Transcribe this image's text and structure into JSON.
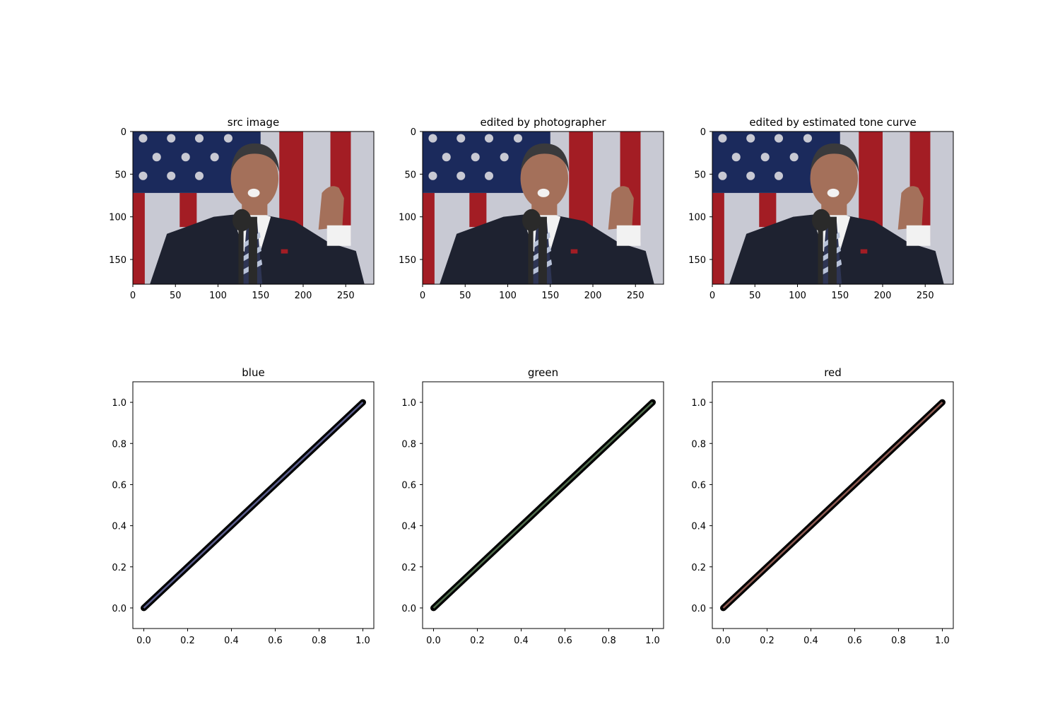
{
  "chart_data": [
    {
      "type": "image",
      "title": "src image",
      "xticks": [
        "0",
        "50",
        "100",
        "150",
        "200",
        "250"
      ],
      "yticks": [
        "0",
        "50",
        "100",
        "150"
      ],
      "xlim": [
        0,
        283
      ],
      "ylim": [
        0,
        179
      ],
      "content": "photo-man-speaking-flag"
    },
    {
      "type": "image",
      "title": "edited by photographer",
      "xticks": [
        "0",
        "50",
        "100",
        "150",
        "200",
        "250"
      ],
      "yticks": [
        "0",
        "50",
        "100",
        "150"
      ],
      "xlim": [
        0,
        283
      ],
      "ylim": [
        0,
        179
      ],
      "content": "photo-man-speaking-flag"
    },
    {
      "type": "image",
      "title": "edited by estimated tone curve",
      "xticks": [
        "0",
        "50",
        "100",
        "150",
        "200",
        "250"
      ],
      "yticks": [
        "0",
        "50",
        "100",
        "150"
      ],
      "xlim": [
        0,
        283
      ],
      "ylim": [
        0,
        179
      ],
      "content": "photo-man-speaking-flag"
    },
    {
      "type": "scatter",
      "title": "blue",
      "xticks": [
        "0.0",
        "0.2",
        "0.4",
        "0.6",
        "0.8",
        "1.0"
      ],
      "yticks": [
        "0.0",
        "0.2",
        "0.4",
        "0.6",
        "0.8",
        "1.0"
      ],
      "xlim": [
        -0.05,
        1.05
      ],
      "ylim": [
        -0.1,
        1.1
      ],
      "x": [
        0,
        1
      ],
      "y": [
        0,
        1
      ],
      "points": "dense",
      "marker_color": "#000000",
      "line_color": "#5b5e8c"
    },
    {
      "type": "scatter",
      "title": "green",
      "xticks": [
        "0.0",
        "0.2",
        "0.4",
        "0.6",
        "0.8",
        "1.0"
      ],
      "yticks": [
        "0.0",
        "0.2",
        "0.4",
        "0.6",
        "0.8",
        "1.0"
      ],
      "xlim": [
        -0.05,
        1.05
      ],
      "ylim": [
        -0.1,
        1.1
      ],
      "x": [
        0,
        1
      ],
      "y": [
        0,
        1
      ],
      "points": "dense",
      "marker_color": "#000000",
      "line_color": "#4f6b4c"
    },
    {
      "type": "scatter",
      "title": "red",
      "xticks": [
        "0.0",
        "0.2",
        "0.4",
        "0.6",
        "0.8",
        "1.0"
      ],
      "yticks": [
        "0.0",
        "0.2",
        "0.4",
        "0.6",
        "0.8",
        "1.0"
      ],
      "xlim": [
        -0.05,
        1.05
      ],
      "ylim": [
        -0.1,
        1.1
      ],
      "x": [
        0,
        1
      ],
      "y": [
        0,
        1
      ],
      "points": "dense",
      "marker_color": "#000000",
      "line_color": "#8c5a52"
    }
  ],
  "photo_colors": {
    "flag_blue": "#1b2a5c",
    "flag_red": "#a31d24",
    "flag_white": "#c8c9d3",
    "suit": "#1e2230",
    "skin": "#a4705a",
    "hair": "#3a3a3c",
    "shirt": "#f2f2f2",
    "tie_light": "#b8c2d8",
    "tie_dark": "#2e3554",
    "mic": "#2a2a2a"
  }
}
